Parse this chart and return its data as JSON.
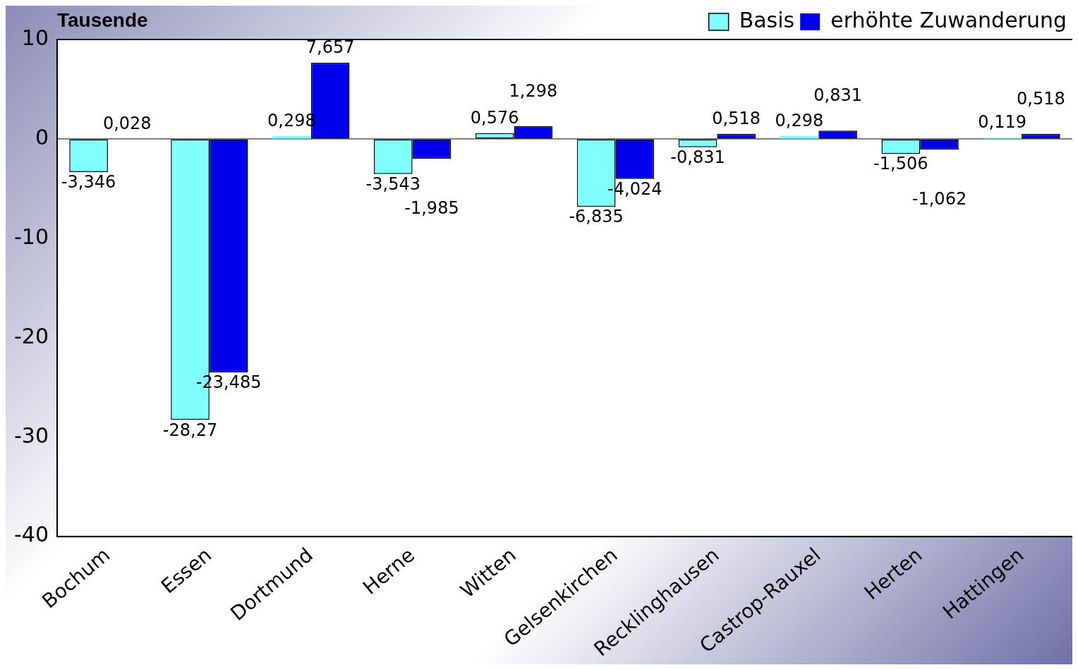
{
  "chart_data": {
    "type": "bar",
    "ylabel": "Tausende",
    "categories": [
      "Bochum",
      "Essen",
      "Dortmund",
      "Herne",
      "Witten",
      "Gelsenkirchen",
      "Recklinghausen",
      "Castrop-Rauxel",
      "Herten",
      "Hattingen"
    ],
    "series": [
      {
        "name": "Basis",
        "color": "#80ffff",
        "values": [
          -3.346,
          -28.27,
          0.298,
          -3.543,
          0.576,
          -6.835,
          -0.831,
          0.298,
          -1.506,
          0.119
        ],
        "value_labels": [
          "-3,346",
          "-28,27",
          "0,298",
          "-3,543",
          "0,576",
          "-6,835",
          "-0,831",
          "0,298",
          "-1,506",
          "0,119"
        ]
      },
      {
        "name": "erhöhte Zuwanderung",
        "color": "#0000ee",
        "values": [
          0.028,
          -23.485,
          7.657,
          -1.985,
          1.298,
          -4.024,
          0.518,
          0.831,
          -1.062,
          0.518
        ],
        "value_labels": [
          "0,028",
          "-23,485",
          "7,657",
          "-1,985",
          "1,298",
          "-4,024",
          "0,518",
          "0,831",
          "-1,062",
          "0,518"
        ]
      }
    ],
    "ylim": [
      -40,
      10
    ],
    "yticks": [
      10,
      0,
      -10,
      -20,
      -30,
      -40
    ],
    "grid": "y",
    "legend": "top right"
  }
}
